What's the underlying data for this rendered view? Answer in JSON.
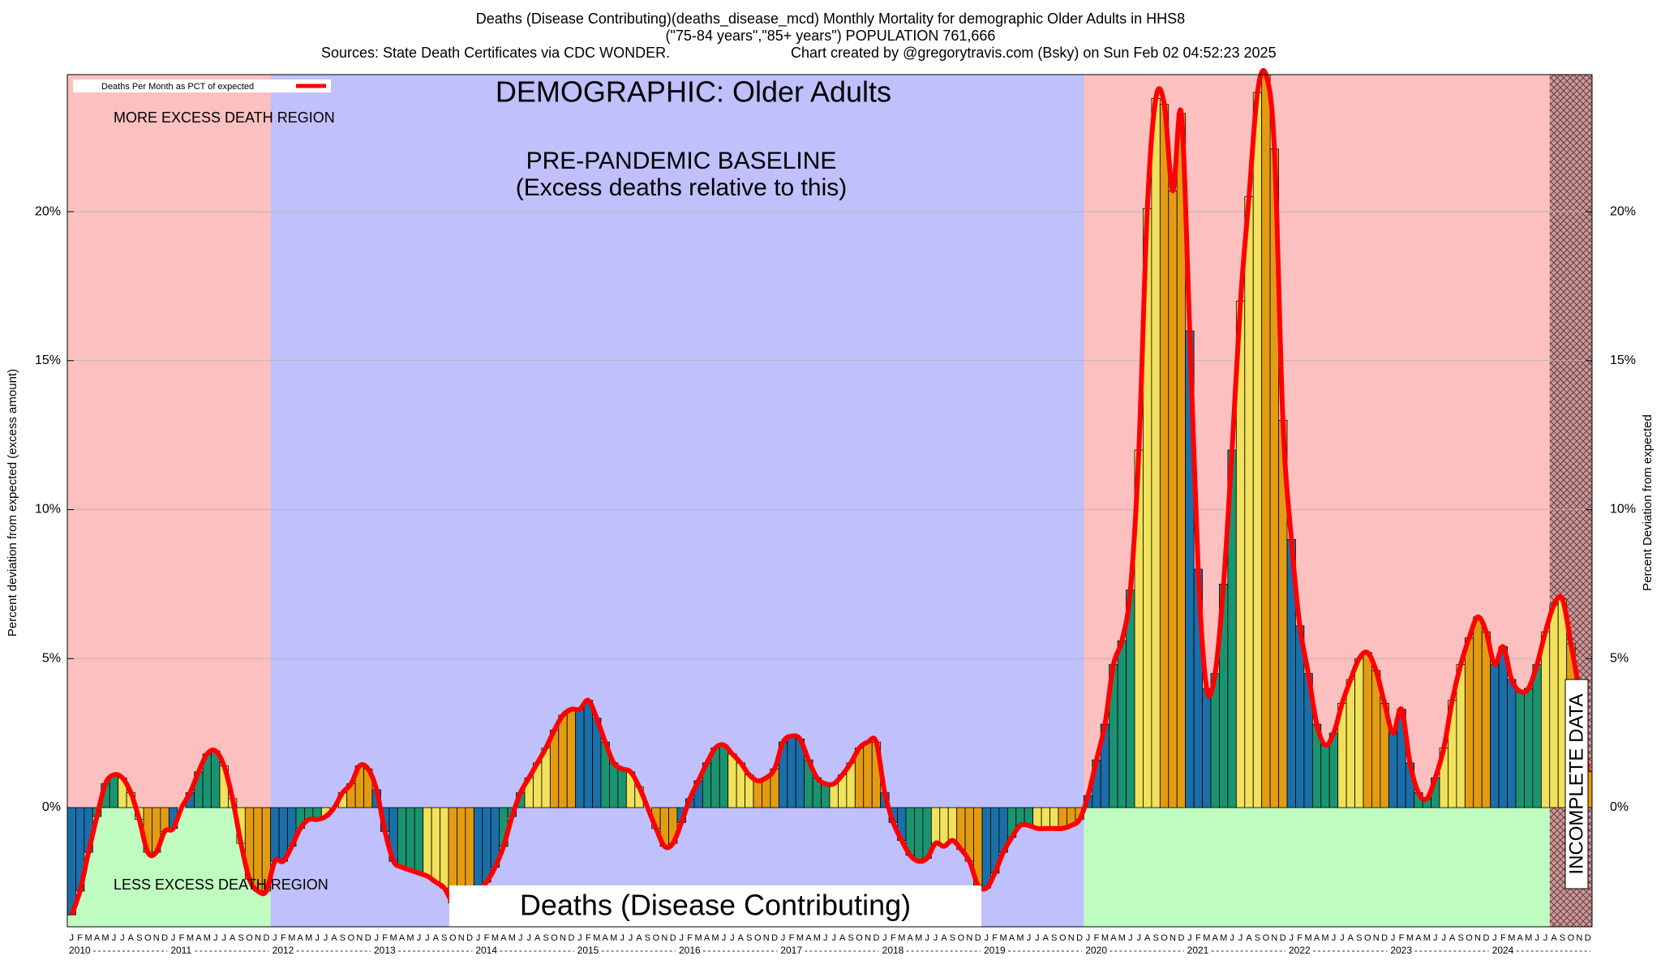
{
  "chart_data": {
    "type": "bar",
    "title": "Deaths (Disease Contributing)(deaths_disease_mcd) Monthly Mortality for demographic Older Adults in HHS8",
    "subtitle": "(\"75-84 years\",\"85+ years\") POPULATION 761,666",
    "source": "Sources: State Death Certificates via CDC WONDER.",
    "credit": "Chart created by @gregorytravis.com (Bsky) on Sun Feb 02 04:52:23 2025",
    "annotations": {
      "demographic": "DEMOGRAPHIC: Older Adults",
      "baseline": "PRE-PANDEMIC BASELINE",
      "baseline_note": "(Excess deaths relative to this)",
      "more": "MORE EXCESS DEATH REGION",
      "less": "LESS EXCESS DEATH REGION",
      "metric": "Deaths (Disease Contributing)",
      "incomplete": "INCOMPLETE DATA"
    },
    "y_label": "Percent deviation from expected (excess amount)",
    "y2_label": "Percent Deviation from expected",
    "month_letters": [
      "J",
      "F",
      "M",
      "A",
      "M",
      "J",
      "J",
      "A",
      "S",
      "O",
      "N",
      "D"
    ],
    "years": [
      "2010",
      "2011",
      "2012",
      "2013",
      "2014",
      "2015",
      "2016",
      "2017",
      "2018",
      "2019",
      "2020",
      "2021",
      "2022",
      "2023",
      "2024"
    ],
    "bar_colors": [
      "#1b6fa8",
      "#1a9470",
      "#f2e15a",
      "#e39c12"
    ],
    "series": [
      {
        "name": "Deaths Per Month as PCT of expected",
        "color": "#ff0000",
        "values": [
          -3.6,
          -2.8,
          -1.5,
          -0.3,
          0.8,
          1.1,
          1.0,
          0.5,
          -0.4,
          -1.5,
          -1.5,
          -0.8,
          -0.7,
          0.0,
          0.5,
          1.2,
          1.8,
          1.9,
          1.4,
          0.3,
          -1.2,
          -2.4,
          -2.8,
          -2.8,
          -1.8,
          -1.8,
          -1.3,
          -0.7,
          -0.4,
          -0.4,
          -0.3,
          0.0,
          0.5,
          0.8,
          1.4,
          1.3,
          0.6,
          -0.8,
          -1.8,
          -2.0,
          -2.1,
          -2.2,
          -2.3,
          -2.5,
          -2.7,
          -3.2,
          -3.3,
          -3.0,
          -2.8,
          -2.5,
          -2.0,
          -1.3,
          -0.3,
          0.5,
          1.0,
          1.5,
          2.0,
          2.6,
          3.1,
          3.3,
          3.3,
          3.6,
          3.0,
          2.2,
          1.5,
          1.3,
          1.2,
          0.7,
          0.0,
          -0.7,
          -1.3,
          -1.2,
          -0.5,
          0.3,
          0.9,
          1.5,
          2.0,
          2.1,
          1.8,
          1.5,
          1.1,
          0.9,
          1.0,
          1.3,
          2.2,
          2.4,
          2.3,
          1.6,
          1.0,
          0.8,
          0.8,
          1.1,
          1.5,
          2.0,
          2.2,
          2.2,
          0.5,
          -0.5,
          -1.1,
          -1.6,
          -1.8,
          -1.7,
          -1.2,
          -1.3,
          -1.1,
          -1.4,
          -1.8,
          -2.6,
          -2.7,
          -2.2,
          -1.5,
          -1.0,
          -0.6,
          -0.6,
          -0.7,
          -0.7,
          -0.7,
          -0.7,
          -0.6,
          -0.4,
          0.4,
          1.6,
          2.8,
          4.8,
          5.6,
          7.3,
          12.0,
          20.1,
          23.8,
          23.6,
          20.7,
          23.3,
          16.0,
          8.0,
          4.0,
          4.5,
          7.5,
          12.0,
          17.0,
          20.5,
          24.0,
          24.6,
          22.1,
          13.0,
          9.0,
          6.1,
          4.5,
          2.8,
          2.1,
          2.5,
          3.5,
          4.3,
          5.0,
          5.2,
          4.6,
          3.5,
          2.5,
          3.3,
          1.5,
          0.5,
          0.3,
          1.0,
          2.0,
          3.6,
          4.8,
          5.7,
          6.4,
          5.9,
          4.8,
          5.4,
          4.3,
          3.9,
          4.0,
          4.8,
          5.9,
          6.8,
          7.0,
          5.5,
          3.8,
          1.2
        ]
      }
    ],
    "ylim": [
      -4,
      24.6
    ],
    "yticks": [
      {
        "value": 0,
        "label": "0%"
      },
      {
        "value": 5,
        "label": "5%"
      },
      {
        "value": 10,
        "label": "10%"
      },
      {
        "value": 15,
        "label": "15%"
      },
      {
        "value": 20,
        "label": "20%"
      }
    ],
    "grid": true
  }
}
